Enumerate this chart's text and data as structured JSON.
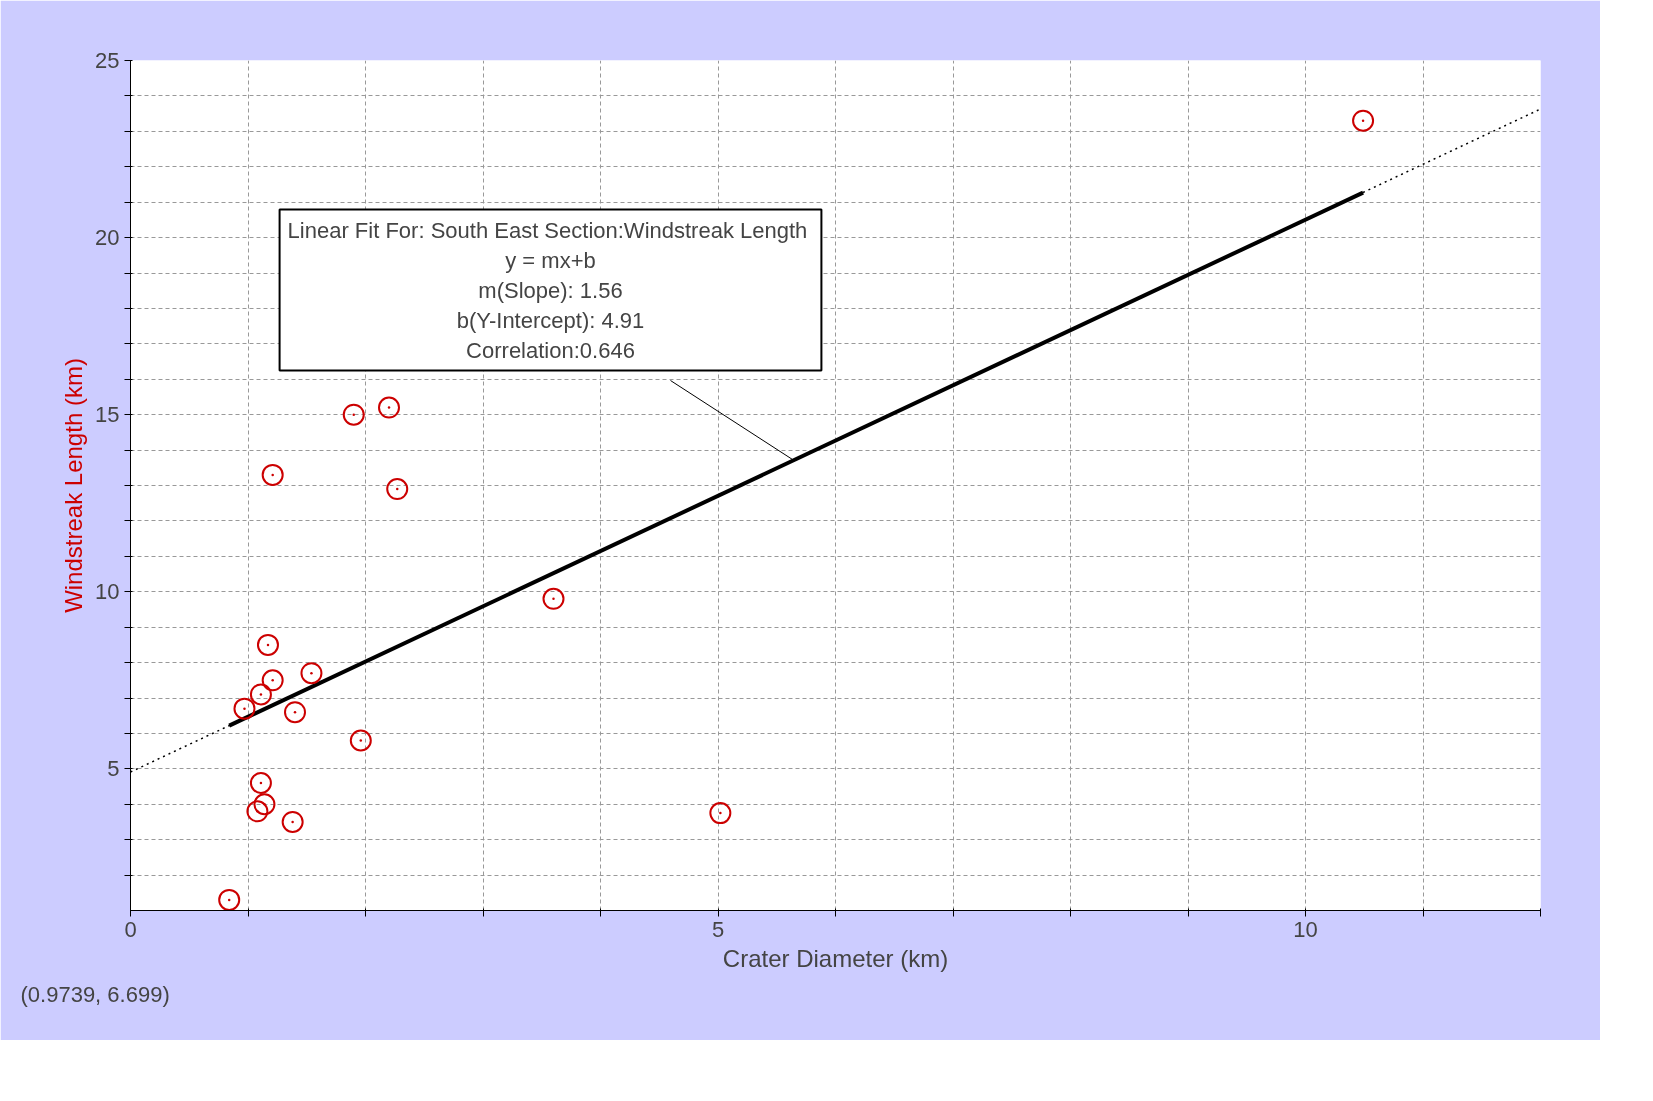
{
  "chart_data": {
    "type": "scatter",
    "xlabel": "Crater Diameter (km)",
    "ylabel": "Windstreak Length (km)",
    "xlim": [
      0,
      12
    ],
    "ylim": [
      1,
      25
    ],
    "xticks": [
      0,
      {
        "value": 1,
        "label": null
      },
      {
        "value": 2,
        "label": null
      },
      {
        "value": 3,
        "label": null
      },
      {
        "value": 4,
        "label": null
      },
      5,
      {
        "value": 6,
        "label": null
      },
      {
        "value": 7,
        "label": null
      },
      {
        "value": 8,
        "label": null
      },
      {
        "value": 9,
        "label": null
      },
      10,
      {
        "value": 11,
        "label": null
      },
      {
        "value": 12,
        "label": null
      }
    ],
    "yticks": [
      {
        "value": 2,
        "label": null
      },
      {
        "value": 3,
        "label": null
      },
      {
        "value": 4,
        "label": null
      },
      5,
      {
        "value": 6,
        "label": null
      },
      {
        "value": 7,
        "label": null
      },
      {
        "value": 8,
        "label": null
      },
      {
        "value": 9,
        "label": null
      },
      10,
      {
        "value": 11,
        "label": null
      },
      {
        "value": 12,
        "label": null
      },
      {
        "value": 13,
        "label": null
      },
      {
        "value": 14,
        "label": null
      },
      15,
      {
        "value": 16,
        "label": null
      },
      {
        "value": 17,
        "label": null
      },
      {
        "value": 18,
        "label": null
      },
      {
        "value": 19,
        "label": null
      },
      20,
      {
        "value": 21,
        "label": null
      },
      {
        "value": 22,
        "label": null
      },
      {
        "value": 23,
        "label": null
      },
      {
        "value": 24,
        "label": null
      },
      25
    ],
    "grid": true,
    "series": [
      {
        "type": "line",
        "color": "#000000",
        "line_style": "dotted",
        "x": [
          0,
          12
        ],
        "values": [
          4.91,
          23.63
        ]
      },
      {
        "type": "line",
        "color": "#000000",
        "line_style": "solid",
        "x": [
          0.84,
          10.49
        ],
        "values": [
          6.22,
          21.27
        ]
      },
      {
        "color": "#cc0000",
        "marker": "circle",
        "x": [
          0.84,
          10.49,
          1.9,
          2.2,
          1.21,
          2.27,
          3.6,
          1.17,
          1.54,
          1.21,
          1.11,
          0.97,
          1.4,
          1.96,
          1.11,
          1.14,
          1.08,
          1.38,
          5.02
        ],
        "values": [
          1.3,
          23.3,
          15.0,
          15.2,
          13.3,
          12.9,
          9.8,
          8.5,
          7.7,
          7.5,
          7.1,
          6.7,
          6.6,
          5.8,
          4.6,
          4.0,
          3.8,
          3.5,
          3.75
        ]
      }
    ],
    "annotations": [
      {
        "text": "Linear Fit For:  South East Section:Windstreak Length\ny = mx+b\nm(Slope): 1.56\nb(Y-Intercept): 4.91\nCorrelation:0.646",
        "x": 5.65,
        "y": 13.7
      },
      "(0.9739, 6.699)"
    ]
  }
}
